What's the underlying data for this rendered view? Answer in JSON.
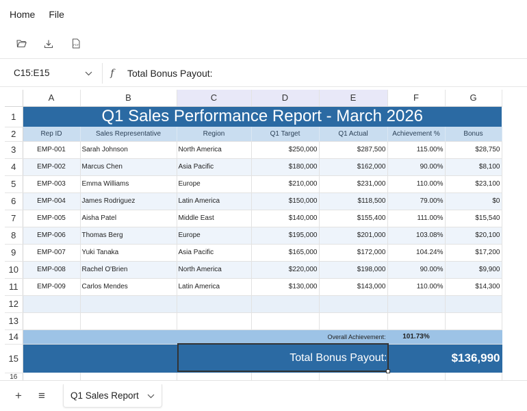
{
  "menu": {
    "home": "Home",
    "file": "File"
  },
  "toolbar": {
    "icons": [
      "folder-open-icon",
      "download-icon",
      "pdf-icon"
    ],
    "pdf_icon_text": "PDF"
  },
  "formula_bar": {
    "name_box": "C15:E15",
    "fx_symbol": "f",
    "formula": "Total Bonus Payout:"
  },
  "grid": {
    "columns": [
      "A",
      "B",
      "C",
      "D",
      "E",
      "F",
      "G"
    ],
    "selected_columns": [
      "C",
      "D",
      "E"
    ],
    "row_numbers": [
      "1",
      "2",
      "3",
      "4",
      "5",
      "6",
      "7",
      "8",
      "9",
      "10",
      "11",
      "12",
      "13",
      "14",
      "15",
      "16"
    ],
    "title": "Q1 Sales Performance Report - March 2026",
    "headers": [
      "Rep ID",
      "Sales Representative",
      "Region",
      "Q1 Target",
      "Q1 Actual",
      "Achievement %",
      "Bonus"
    ],
    "rows": [
      [
        "EMP-001",
        "Sarah Johnson",
        "North America",
        "$250,000",
        "$287,500",
        "115.00%",
        "$28,750"
      ],
      [
        "EMP-002",
        "Marcus Chen",
        "Asia Pacific",
        "$180,000",
        "$162,000",
        "90.00%",
        "$8,100"
      ],
      [
        "EMP-003",
        "Emma Williams",
        "Europe",
        "$210,000",
        "$231,000",
        "110.00%",
        "$23,100"
      ],
      [
        "EMP-004",
        "James Rodriguez",
        "Latin America",
        "$150,000",
        "$118,500",
        "79.00%",
        "$0"
      ],
      [
        "EMP-005",
        "Aisha Patel",
        "Middle East",
        "$140,000",
        "$155,400",
        "111.00%",
        "$15,540"
      ],
      [
        "EMP-006",
        "Thomas Berg",
        "Europe",
        "$195,000",
        "$201,000",
        "103.08%",
        "$20,100"
      ],
      [
        "EMP-007",
        "Yuki Tanaka",
        "Asia Pacific",
        "$165,000",
        "$172,000",
        "104.24%",
        "$17,200"
      ],
      [
        "EMP-008",
        "Rachel O'Brien",
        "North America",
        "$220,000",
        "$198,000",
        "90.00%",
        "$9,900"
      ],
      [
        "EMP-009",
        "Carlos Mendes",
        "Latin America",
        "$130,000",
        "$143,000",
        "110.00%",
        "$14,300"
      ]
    ],
    "summary": {
      "label": "Overall Achievement:",
      "value": "101.73%"
    },
    "total": {
      "label": "Total Bonus Payout:",
      "value": "$136,990"
    }
  },
  "sheet_tabs": {
    "add": "+",
    "list": "≡",
    "active": "Q1 Sales Report"
  },
  "colors": {
    "title_bg": "#2b6aa3",
    "header_bg": "#c9ddf0",
    "summary_bg": "#9dc3e6",
    "band_bg": "#eef4fb",
    "selected_col_bg": "#e8e8f8"
  }
}
